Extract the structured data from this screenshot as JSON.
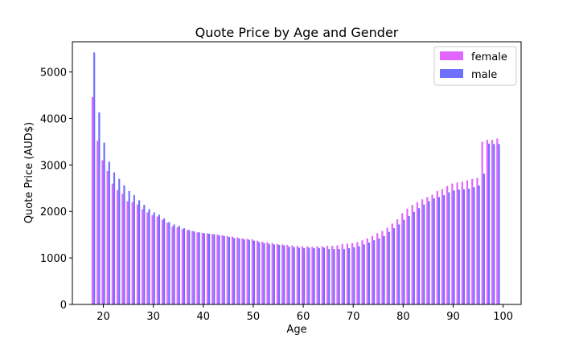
{
  "chart_data": {
    "type": "bar",
    "title": "Quote Price by Age and Gender",
    "xlabel": "Age",
    "ylabel": "Quote Price (AUD$)",
    "xlim": [
      13.8,
      103.6
    ],
    "ylim": [
      0,
      5650
    ],
    "xticks": [
      20,
      30,
      40,
      50,
      60,
      70,
      80,
      90,
      100
    ],
    "yticks": [
      0,
      1000,
      2000,
      3000,
      4000,
      5000
    ],
    "legend_position": "top-right",
    "x": [
      18,
      19,
      20,
      21,
      22,
      23,
      24,
      25,
      26,
      27,
      28,
      29,
      30,
      31,
      32,
      33,
      34,
      35,
      36,
      37,
      38,
      39,
      40,
      41,
      42,
      43,
      44,
      45,
      46,
      47,
      48,
      49,
      50,
      51,
      52,
      53,
      54,
      55,
      56,
      57,
      58,
      59,
      60,
      61,
      62,
      63,
      64,
      65,
      66,
      67,
      68,
      69,
      70,
      71,
      72,
      73,
      74,
      75,
      76,
      77,
      78,
      79,
      80,
      81,
      82,
      83,
      84,
      85,
      86,
      87,
      88,
      89,
      90,
      91,
      92,
      93,
      94,
      95,
      96,
      97,
      98,
      99
    ],
    "series": [
      {
        "name": "female",
        "color": "#e066ff",
        "values": [
          4460,
          3520,
          3100,
          2870,
          2600,
          2460,
          2380,
          2220,
          2200,
          2150,
          2050,
          1980,
          1920,
          1890,
          1820,
          1760,
          1680,
          1660,
          1620,
          1600,
          1580,
          1550,
          1540,
          1530,
          1510,
          1500,
          1490,
          1470,
          1460,
          1440,
          1420,
          1410,
          1400,
          1370,
          1350,
          1340,
          1320,
          1300,
          1290,
          1280,
          1270,
          1260,
          1250,
          1250,
          1240,
          1250,
          1250,
          1260,
          1260,
          1270,
          1300,
          1310,
          1320,
          1340,
          1380,
          1420,
          1470,
          1530,
          1580,
          1650,
          1740,
          1830,
          1960,
          2060,
          2140,
          2200,
          2260,
          2310,
          2360,
          2440,
          2480,
          2550,
          2600,
          2620,
          2640,
          2670,
          2700,
          2720,
          3500,
          3540,
          3540,
          3570
        ]
      },
      {
        "name": "male",
        "color": "#7070ff",
        "values": [
          5420,
          4130,
          3480,
          3070,
          2840,
          2700,
          2560,
          2440,
          2350,
          2240,
          2140,
          2050,
          1980,
          1930,
          1850,
          1770,
          1720,
          1690,
          1640,
          1600,
          1570,
          1550,
          1530,
          1520,
          1510,
          1490,
          1470,
          1450,
          1430,
          1420,
          1400,
          1390,
          1370,
          1340,
          1320,
          1300,
          1290,
          1280,
          1270,
          1240,
          1230,
          1220,
          1210,
          1220,
          1210,
          1210,
          1220,
          1190,
          1190,
          1190,
          1190,
          1210,
          1230,
          1250,
          1290,
          1330,
          1380,
          1420,
          1470,
          1560,
          1640,
          1720,
          1820,
          1900,
          1990,
          2070,
          2150,
          2220,
          2280,
          2310,
          2350,
          2410,
          2450,
          2470,
          2480,
          2490,
          2520,
          2560,
          2810,
          3460,
          3450,
          3450
        ]
      }
    ]
  }
}
